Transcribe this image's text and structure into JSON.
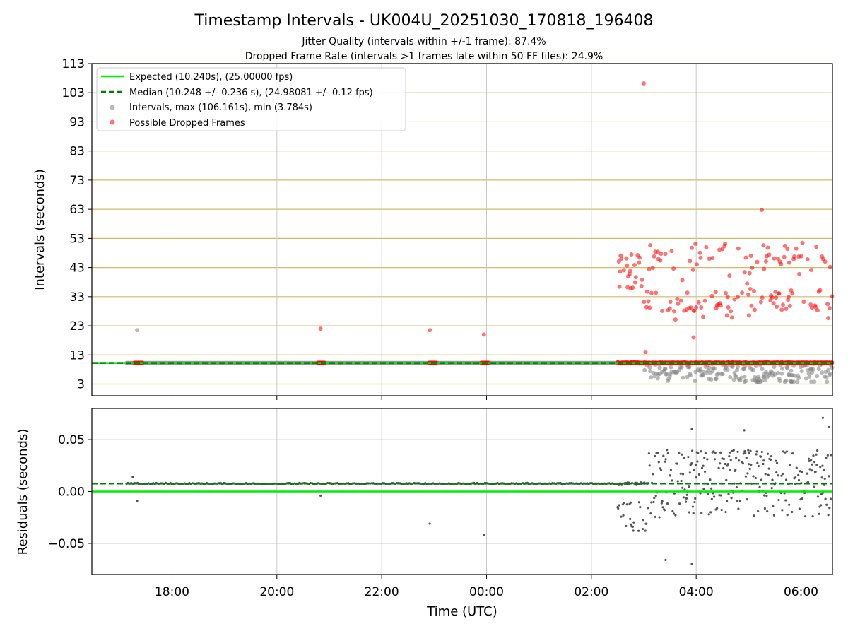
{
  "title": "Timestamp Intervals - UK004U_20251030_170818_196408",
  "subtitle_lines": [
    "Jitter Quality (intervals within +/-1 frame): 87.4%",
    "Dropped Frame Rate (intervals >1 frames late within 50 FF files): 24.9%"
  ],
  "colors": {
    "expected": "#00ee00",
    "median": "#008000",
    "intervals": "#808080",
    "dropped": "#ff0000",
    "hgrid_top": "#d4b96a",
    "grid": "#c8c8c8",
    "residuals": "#555555"
  },
  "chart_data": [
    {
      "type": "scatter",
      "panel": "top",
      "ylabel": "Intervals (seconds)",
      "ylim": [
        -1,
        113
      ],
      "yticks": [
        3,
        13,
        23,
        33,
        43,
        53,
        63,
        73,
        83,
        93,
        103,
        113
      ],
      "xlim_hours": [
        16.47,
        30.6
      ],
      "grid": "horizontal gold lines at y ticks, vertical grey lines at x ticks",
      "legend_position": "top-left",
      "legend": [
        "Expected (10.240s), (25.00000 fps)",
        "Median (10.248 +/- 0.236 s), (24.98081 +/- 0.12 fps)",
        "Intervals, max (106.161s), min (3.784s)",
        "Possible Dropped Frames"
      ],
      "expected_line": 10.24,
      "median_line": 10.248,
      "series": [
        {
          "name": "Intervals, max (106.161s), min (3.784s)",
          "marker": "gray dot",
          "summary": "dense band at ~10.24 s from 17:08 to 06:35 UTC; after 03:00 spread between ~3.8 and ~10 s",
          "outliers": [
            {
              "x": "17:20",
              "y": 21.5
            }
          ]
        },
        {
          "name": "Possible Dropped Frames",
          "marker": "red dot",
          "summary": "clusters at ~10.3 s around 17:25, 20:52, 22:58, 23:58; dense at ~10.3 s and 25-51 s after 02:30",
          "outliers": [
            {
              "x": "20:50",
              "y": 22
            },
            {
              "x": "22:55",
              "y": 21.5
            },
            {
              "x": "23:57",
              "y": 20
            },
            {
              "x": "03:00",
              "y": 106.2
            },
            {
              "x": "05:15",
              "y": 62.8
            },
            {
              "x": "03:57",
              "y": 19
            },
            {
              "x": "03:02",
              "y": 14
            }
          ]
        }
      ]
    },
    {
      "type": "scatter",
      "panel": "bottom",
      "ylabel": "Residuals (seconds)",
      "xlabel": "Time (UTC)",
      "ylim": [
        -0.08,
        0.08
      ],
      "yticks": [
        0.05,
        0.0,
        -0.05
      ],
      "ytick_labels": [
        "0.05",
        "0.00",
        "−0.05"
      ],
      "xticks": [
        "18:00",
        "20:00",
        "22:00",
        "00:00",
        "02:00",
        "04:00",
        "06:00"
      ],
      "xtick_hours": [
        18,
        20,
        22,
        24,
        26,
        28,
        30
      ],
      "zero_line": 0.0,
      "median_line": 0.0075,
      "outliers": [
        {
          "x": "17:15",
          "y": 0.014
        },
        {
          "x": "17:20",
          "y": -0.009
        },
        {
          "x": "20:50",
          "y": -0.004
        },
        {
          "x": "22:55",
          "y": -0.031
        },
        {
          "x": "23:57",
          "y": -0.042
        },
        {
          "x": "03:25",
          "y": -0.066
        },
        {
          "x": "03:55",
          "y": -0.07
        },
        {
          "x": "03:55",
          "y": 0.06
        },
        {
          "x": "04:55",
          "y": 0.059
        },
        {
          "x": "06:25",
          "y": 0.071
        },
        {
          "x": "06:32",
          "y": 0.062
        }
      ]
    }
  ]
}
